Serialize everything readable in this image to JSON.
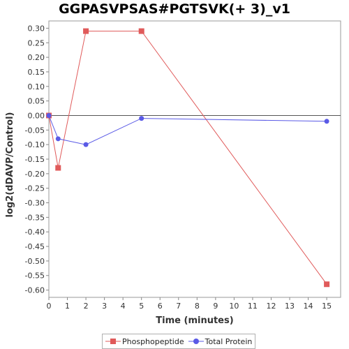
{
  "chart_data": {
    "type": "line",
    "title": "GGPASVPSAS#PGTSVK(+ 3)_v1",
    "xlabel": "Time (minutes)",
    "ylabel": "log2(dDAVP/Control)",
    "xlim": [
      0,
      15.75
    ],
    "ylim": [
      -0.625,
      0.325
    ],
    "xticks": [
      0,
      1,
      2,
      3,
      4,
      5,
      6,
      7,
      8,
      9,
      10,
      11,
      12,
      13,
      14,
      15
    ],
    "yticks": [
      0.3,
      0.25,
      0.2,
      0.15,
      0.1,
      0.05,
      0.0,
      -0.05,
      -0.1,
      -0.15,
      -0.2,
      -0.25,
      -0.3,
      -0.35,
      -0.4,
      -0.45,
      -0.5,
      -0.55,
      -0.6
    ],
    "ytick_labels": [
      "0.30",
      "0.25",
      "0.20",
      "0.15",
      "0.10",
      "0.05",
      "0.00",
      "-0.05",
      "-0.10",
      "-0.15",
      "-0.20",
      "-0.25",
      "-0.30",
      "-0.35",
      "-0.40",
      "-0.45",
      "-0.50",
      "-0.55",
      "-0.60"
    ],
    "grid": false,
    "zero_line": true,
    "legend_position": "bottom",
    "series": [
      {
        "name": "Phosphopeptide",
        "color": "#e05a5a",
        "marker": "square",
        "x": [
          0,
          0.5,
          2,
          5,
          15
        ],
        "y": [
          0.0,
          -0.18,
          0.29,
          0.29,
          -0.58
        ]
      },
      {
        "name": "Total Protein",
        "color": "#5a5ae6",
        "marker": "circle",
        "x": [
          0,
          0.5,
          2,
          5,
          15
        ],
        "y": [
          0.0,
          -0.08,
          -0.1,
          -0.01,
          -0.02
        ]
      }
    ]
  }
}
